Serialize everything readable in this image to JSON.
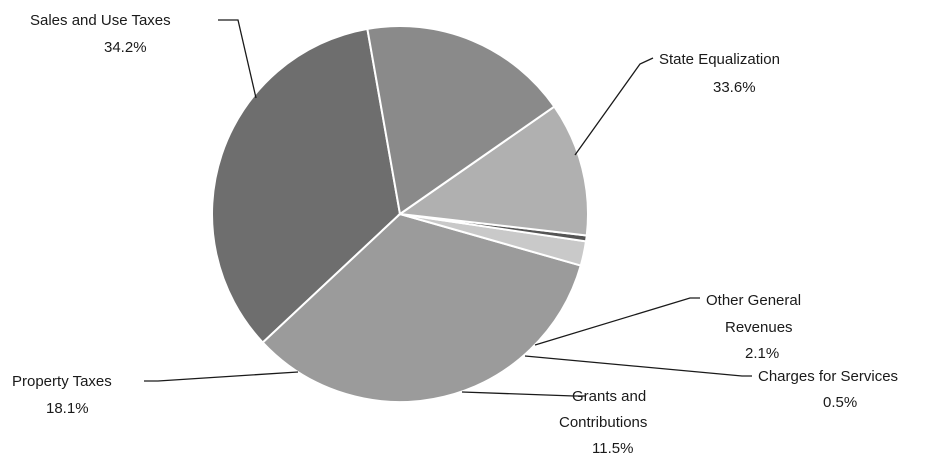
{
  "chart_data": {
    "type": "pie",
    "title": "",
    "slices": [
      {
        "name": "Sales and Use Taxes",
        "value": 34.2,
        "label": "34.2%",
        "color": "#6e6e6e"
      },
      {
        "name": "State Equalization",
        "value": 33.6,
        "label": "33.6%",
        "color": "#9b9b9b"
      },
      {
        "name": "Other General Revenues",
        "value": 2.1,
        "label": "2.1%",
        "color": "#c9c9c9"
      },
      {
        "name": "Charges for Services",
        "value": 0.5,
        "label": "0.5%",
        "color": "#555555"
      },
      {
        "name": "Grants and Contributions",
        "value": 11.5,
        "label": "11.5%",
        "color": "#b0b0b0"
      },
      {
        "name": "Property Taxes",
        "value": 18.1,
        "label": "18.1%",
        "color": "#8a8a8a"
      }
    ],
    "legend": "none"
  }
}
